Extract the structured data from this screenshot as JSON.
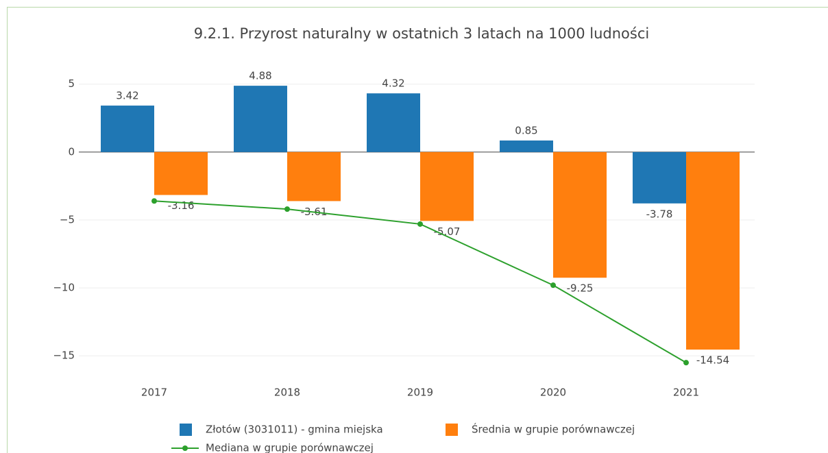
{
  "chart_data": {
    "type": "bar",
    "title": "9.2.1. Przyrost naturalny w ostatnich 3 latach na 1000 ludności",
    "categories": [
      "2017",
      "2018",
      "2019",
      "2020",
      "2021"
    ],
    "series": [
      {
        "name": "Złotów (3031011) - gmina miejska",
        "color": "#1f77b4",
        "type": "bar",
        "values": [
          3.42,
          4.88,
          4.32,
          0.85,
          -3.78
        ]
      },
      {
        "name": "Średnia w grupie porównawczej",
        "color": "#ff7f0e",
        "type": "bar",
        "values": [
          -3.16,
          -3.61,
          -5.07,
          -9.25,
          -14.54
        ]
      },
      {
        "name": "Mediana w grupie porównawczej",
        "color": "#2ca02c",
        "type": "line",
        "values": [
          -3.6,
          -4.2,
          -5.3,
          -9.8,
          -15.5
        ]
      }
    ],
    "ylim": [
      -16.4,
      6.5
    ],
    "yticks": [
      {
        "value": -15,
        "label": "−15"
      },
      {
        "value": -10,
        "label": "−10"
      },
      {
        "value": -5,
        "label": "−5"
      },
      0,
      5
    ],
    "grid": true
  }
}
